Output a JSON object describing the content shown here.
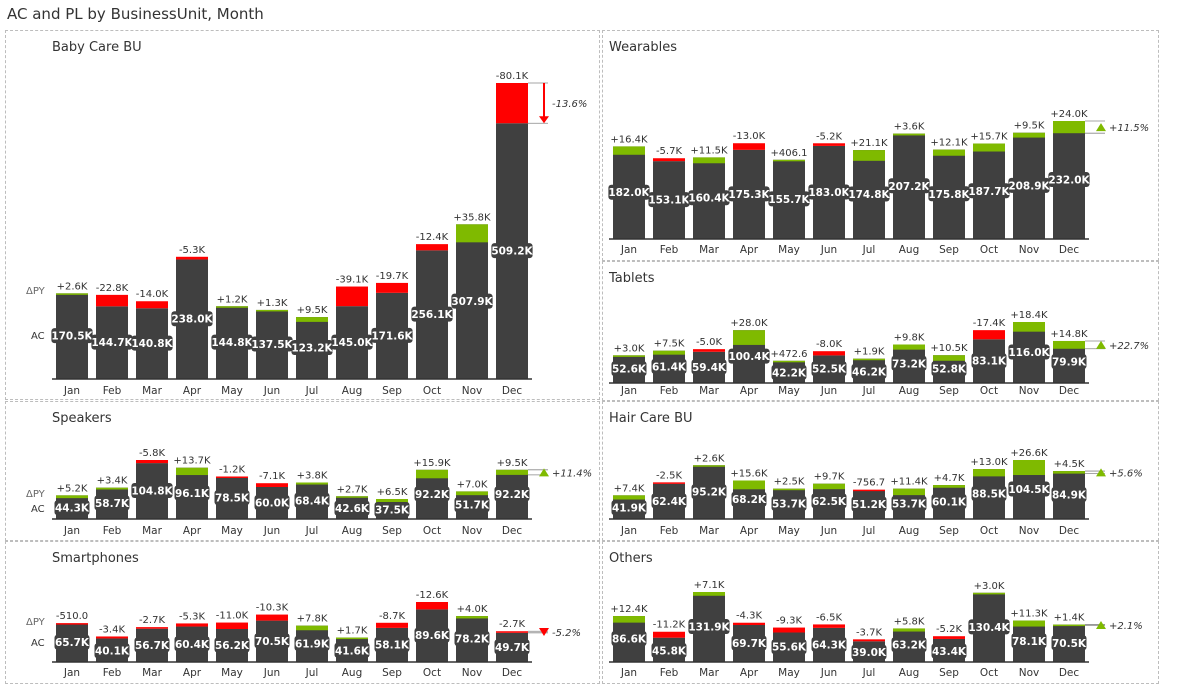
{
  "page": {
    "title": "AC and PL by BusinessUnit, Month"
  },
  "colors": {
    "bar": "#404040",
    "positive": "#7fba00",
    "negative": "#ff0000",
    "axis": "#333333",
    "text": "#333333"
  },
  "legend": {
    "delta_label": "ΔPY",
    "ac_label": "AC"
  },
  "chart_data": [
    {
      "type": "bar",
      "title": "Baby Care BU",
      "categories": [
        "Jan",
        "Feb",
        "Mar",
        "Apr",
        "May",
        "Jun",
        "Jul",
        "Aug",
        "Sep",
        "Oct",
        "Nov",
        "Dec"
      ],
      "series": [
        {
          "name": "AC",
          "values": [
            170.5,
            144.7,
            140.8,
            238.0,
            144.8,
            137.5,
            123.2,
            145.0,
            171.6,
            256.1,
            307.9,
            509.2
          ],
          "labels": [
            "170.5K",
            "144.7K",
            "140.8K",
            "238.0K",
            "144.8K",
            "137.5K",
            "123.2K",
            "145.0K",
            "171.6K",
            "256.1K",
            "307.9K",
            "509.2K"
          ]
        },
        {
          "name": "ΔPY",
          "values": [
            2.6,
            -22.8,
            -14.0,
            -5.3,
            1.2,
            1.3,
            9.5,
            -39.1,
            -19.7,
            -12.4,
            35.8,
            -80.1
          ],
          "labels": [
            "+2.6K",
            "-22.8K",
            "-14.0K",
            "-5.3K",
            "+1.2K",
            "+1.3K",
            "+9.5K",
            "-39.1K",
            "-19.7K",
            "-12.4K",
            "+35.8K",
            "-80.1K"
          ]
        }
      ],
      "total_change": "-13.6%",
      "total_direction": "down",
      "show_row_labels": true
    },
    {
      "type": "bar",
      "title": "Wearables",
      "categories": [
        "Jan",
        "Feb",
        "Mar",
        "Apr",
        "May",
        "Jun",
        "Jul",
        "Aug",
        "Sep",
        "Oct",
        "Nov",
        "Dec"
      ],
      "series": [
        {
          "name": "AC",
          "values": [
            182.0,
            153.1,
            160.4,
            175.3,
            155.7,
            183.0,
            174.8,
            207.2,
            175.8,
            187.7,
            208.9,
            232.0
          ],
          "labels": [
            "182.0K",
            "153.1K",
            "160.4K",
            "175.3K",
            "155.7K",
            "183.0K",
            "174.8K",
            "207.2K",
            "175.8K",
            "187.7K",
            "208.9K",
            "232.0K"
          ]
        },
        {
          "name": "ΔPY",
          "values": [
            16.4,
            -5.7,
            11.5,
            -13.0,
            0.4,
            -5.2,
            21.1,
            3.6,
            12.1,
            15.7,
            9.5,
            24.0
          ],
          "labels": [
            "+16.4K",
            "-5.7K",
            "+11.5K",
            "-13.0K",
            "+406.1",
            "-5.2K",
            "+21.1K",
            "+3.6K",
            "+12.1K",
            "+15.7K",
            "+9.5K",
            "+24.0K"
          ]
        }
      ],
      "total_change": "+11.5%",
      "total_direction": "up",
      "show_row_labels": false
    },
    {
      "type": "bar",
      "title": "Tablets",
      "categories": [
        "Jan",
        "Feb",
        "Mar",
        "Apr",
        "May",
        "Jun",
        "Jul",
        "Aug",
        "Sep",
        "Oct",
        "Nov",
        "Dec"
      ],
      "series": [
        {
          "name": "AC",
          "values": [
            52.6,
            61.4,
            59.4,
            100.4,
            42.2,
            52.5,
            46.2,
            73.2,
            52.8,
            83.1,
            116.0,
            79.9
          ],
          "labels": [
            "52.6K",
            "61.4K",
            "59.4K",
            "100.4K",
            "42.2K",
            "52.5K",
            "46.2K",
            "73.2K",
            "52.8K",
            "83.1K",
            "116.0K",
            "79.9K"
          ]
        },
        {
          "name": "ΔPY",
          "values": [
            3.0,
            7.5,
            -5.0,
            28.0,
            0.5,
            -8.0,
            1.9,
            9.8,
            10.5,
            -17.4,
            18.4,
            14.8
          ],
          "labels": [
            "+3.0K",
            "+7.5K",
            "-5.0K",
            "+28.0K",
            "+472.6",
            "-8.0K",
            "+1.9K",
            "+9.8K",
            "+10.5K",
            "-17.4K",
            "+18.4K",
            "+14.8K"
          ]
        }
      ],
      "total_change": "+22.7%",
      "total_direction": "up",
      "show_row_labels": false
    },
    {
      "type": "bar",
      "title": "Speakers",
      "categories": [
        "Jan",
        "Feb",
        "Mar",
        "Apr",
        "May",
        "Jun",
        "Jul",
        "Aug",
        "Sep",
        "Oct",
        "Nov",
        "Dec"
      ],
      "series": [
        {
          "name": "AC",
          "values": [
            44.3,
            58.7,
            104.8,
            96.1,
            78.5,
            60.0,
            68.4,
            42.6,
            37.5,
            92.2,
            51.7,
            92.2
          ],
          "labels": [
            "44.3K",
            "58.7K",
            "104.8K",
            "96.1K",
            "78.5K",
            "60.0K",
            "68.4K",
            "42.6K",
            "37.5K",
            "92.2K",
            "51.7K",
            "92.2K"
          ]
        },
        {
          "name": "ΔPY",
          "values": [
            5.2,
            3.4,
            -5.8,
            13.7,
            -1.2,
            -7.1,
            3.8,
            2.7,
            6.5,
            15.9,
            7.0,
            9.5
          ],
          "labels": [
            "+5.2K",
            "+3.4K",
            "-5.8K",
            "+13.7K",
            "-1.2K",
            "-7.1K",
            "+3.8K",
            "+2.7K",
            "+6.5K",
            "+15.9K",
            "+7.0K",
            "+9.5K"
          ]
        }
      ],
      "total_change": "+11.4%",
      "total_direction": "up",
      "show_row_labels": true
    },
    {
      "type": "bar",
      "title": "Hair Care BU",
      "categories": [
        "Jan",
        "Feb",
        "Mar",
        "Apr",
        "May",
        "Jun",
        "Jul",
        "Aug",
        "Sep",
        "Oct",
        "Nov",
        "Dec"
      ],
      "series": [
        {
          "name": "AC",
          "values": [
            41.9,
            62.4,
            95.2,
            68.2,
            53.7,
            62.5,
            51.2,
            53.7,
            60.1,
            88.5,
            104.5,
            84.9
          ],
          "labels": [
            "41.9K",
            "62.4K",
            "95.2K",
            "68.2K",
            "53.7K",
            "62.5K",
            "51.2K",
            "53.7K",
            "60.1K",
            "88.5K",
            "104.5K",
            "84.9K"
          ]
        },
        {
          "name": "ΔPY",
          "values": [
            7.4,
            -2.5,
            2.6,
            15.6,
            2.5,
            9.7,
            -0.8,
            11.4,
            4.7,
            13.0,
            26.6,
            4.5
          ],
          "labels": [
            "+7.4K",
            "-2.5K",
            "+2.6K",
            "+15.6K",
            "+2.5K",
            "+9.7K",
            "-756.7",
            "+11.4K",
            "+4.7K",
            "+13.0K",
            "+26.6K",
            "+4.5K"
          ]
        }
      ],
      "total_change": "+5.6%",
      "total_direction": "up",
      "show_row_labels": false
    },
    {
      "type": "bar",
      "title": "Smartphones",
      "categories": [
        "Jan",
        "Feb",
        "Mar",
        "Apr",
        "May",
        "Jun",
        "Jul",
        "Aug",
        "Sep",
        "Oct",
        "Nov",
        "Dec"
      ],
      "series": [
        {
          "name": "AC",
          "values": [
            65.7,
            40.1,
            56.7,
            60.4,
            56.2,
            70.5,
            61.9,
            41.6,
            58.1,
            89.6,
            78.2,
            49.7
          ],
          "labels": [
            "65.7K",
            "40.1K",
            "56.7K",
            "60.4K",
            "56.2K",
            "70.5K",
            "61.9K",
            "41.6K",
            "58.1K",
            "89.6K",
            "78.2K",
            "49.7K"
          ]
        },
        {
          "name": "ΔPY",
          "values": [
            -0.5,
            -3.4,
            -2.7,
            -5.3,
            -11.0,
            -10.3,
            7.8,
            1.7,
            -8.7,
            -12.6,
            4.0,
            -2.7
          ],
          "labels": [
            "-510.0",
            "-3.4K",
            "-2.7K",
            "-5.3K",
            "-11.0K",
            "-10.3K",
            "+7.8K",
            "+1.7K",
            "-8.7K",
            "-12.6K",
            "+4.0K",
            "-2.7K"
          ]
        }
      ],
      "total_change": "-5.2%",
      "total_direction": "down",
      "show_row_labels": true
    },
    {
      "type": "bar",
      "title": "Others",
      "categories": [
        "Jan",
        "Feb",
        "Mar",
        "Apr",
        "May",
        "Jun",
        "Jul",
        "Aug",
        "Sep",
        "Oct",
        "Nov",
        "Dec"
      ],
      "series": [
        {
          "name": "AC",
          "values": [
            86.6,
            45.8,
            131.9,
            69.7,
            55.6,
            64.3,
            39.0,
            63.2,
            43.4,
            130.4,
            78.1,
            70.5
          ],
          "labels": [
            "86.6K",
            "45.8K",
            "131.9K",
            "69.7K",
            "55.6K",
            "64.3K",
            "39.0K",
            "63.2K",
            "43.4K",
            "130.4K",
            "78.1K",
            "70.5K"
          ]
        },
        {
          "name": "ΔPY",
          "values": [
            12.4,
            -11.2,
            7.1,
            -4.3,
            -9.3,
            -6.5,
            -3.7,
            5.8,
            -5.2,
            3.0,
            11.3,
            1.4
          ],
          "labels": [
            "+12.4K",
            "-11.2K",
            "+7.1K",
            "-4.3K",
            "-9.3K",
            "-6.5K",
            "-3.7K",
            "+5.8K",
            "-5.2K",
            "+3.0K",
            "+11.3K",
            "+1.4K"
          ]
        }
      ],
      "total_change": "+2.1%",
      "total_direction": "up",
      "show_row_labels": false
    }
  ]
}
